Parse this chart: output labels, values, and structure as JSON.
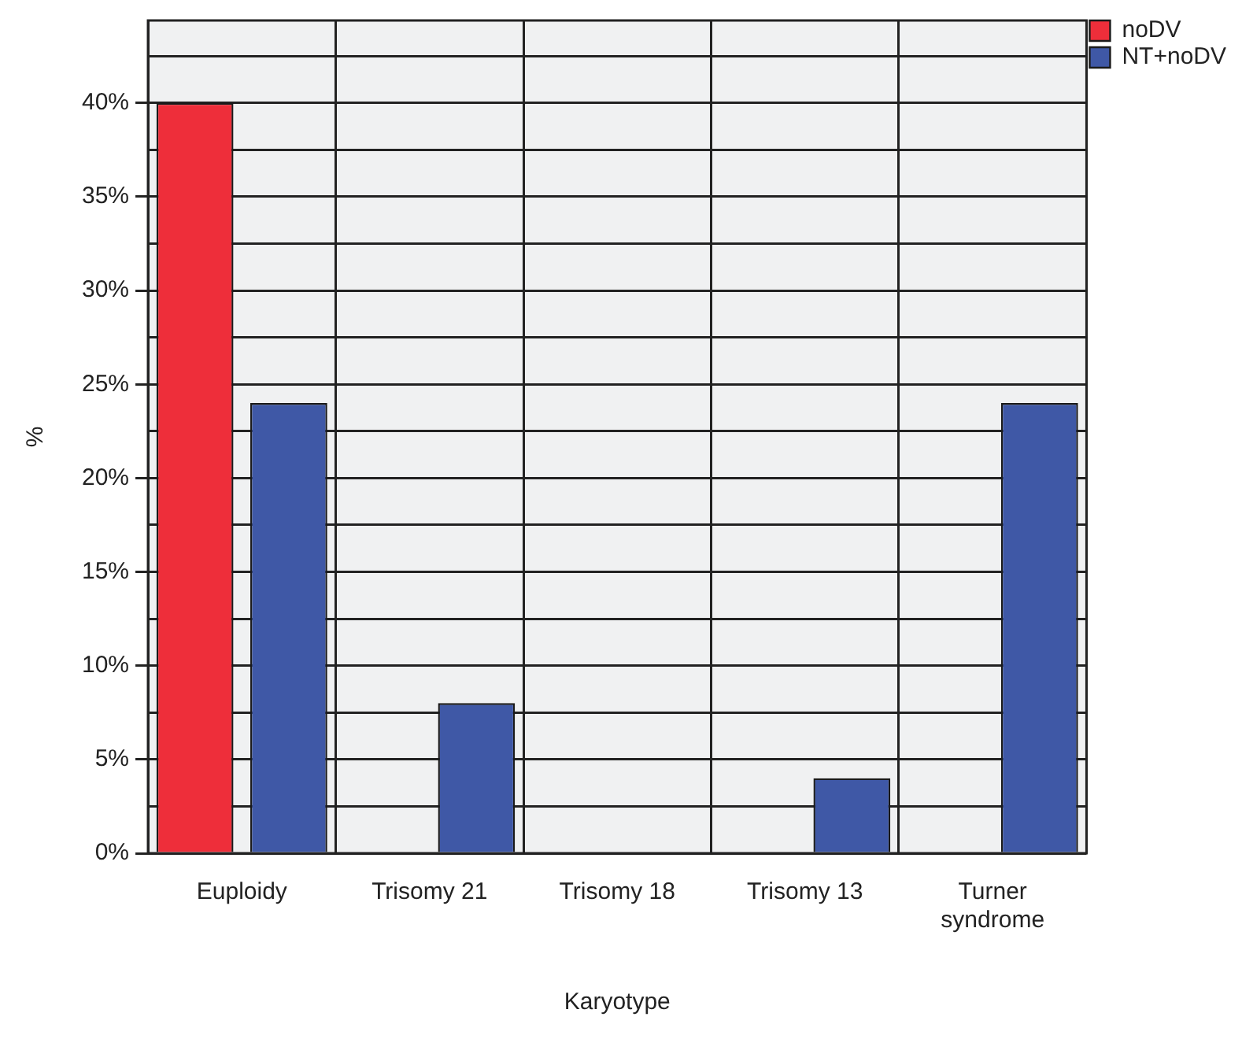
{
  "chart_data": {
    "type": "bar",
    "xlabel": "Karyotype",
    "ylabel": "%",
    "categories": [
      "Euploidy",
      "Trisomy 21",
      "Trisomy 18",
      "Trisomy 13",
      "Turner syndrome"
    ],
    "series": [
      {
        "name": "noDV",
        "color": "#ee2e3a",
        "values": [
          40,
          0,
          0,
          0,
          0
        ]
      },
      {
        "name": "NT+noDV",
        "color": "#3f58a6",
        "values": [
          24,
          8,
          0,
          4,
          24
        ]
      }
    ],
    "ylim": [
      0,
      44.4
    ],
    "yticks": [
      {
        "value": 0,
        "label": "0%"
      },
      {
        "value": 2.5,
        "label": null
      },
      {
        "value": 5,
        "label": "5%"
      },
      {
        "value": 7.5,
        "label": null
      },
      {
        "value": 10,
        "label": "10%"
      },
      {
        "value": 12.5,
        "label": null
      },
      {
        "value": 15,
        "label": "15%"
      },
      {
        "value": 17.5,
        "label": null
      },
      {
        "value": 20,
        "label": "20%"
      },
      {
        "value": 22.5,
        "label": null
      },
      {
        "value": 25,
        "label": "25%"
      },
      {
        "value": 27.5,
        "label": null
      },
      {
        "value": 30,
        "label": "30%"
      },
      {
        "value": 32.5,
        "label": null
      },
      {
        "value": 35,
        "label": "35%"
      },
      {
        "value": 37.5,
        "label": null
      },
      {
        "value": 40,
        "label": "40%"
      },
      {
        "value": 42.5,
        "label": null
      }
    ],
    "grid": true,
    "legend": "top right"
  }
}
